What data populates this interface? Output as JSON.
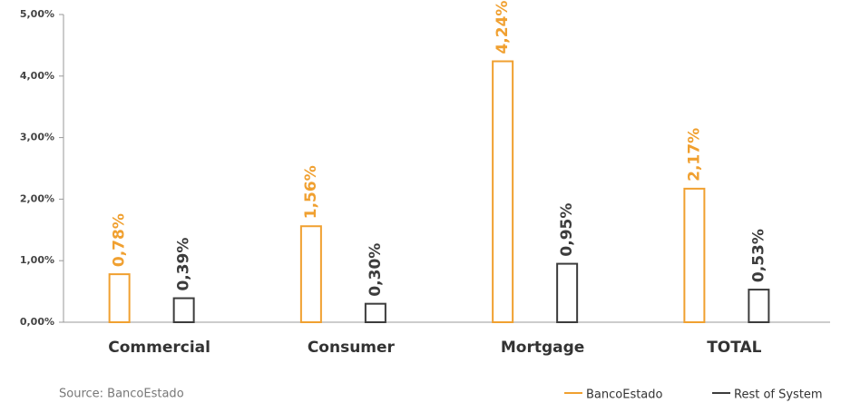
{
  "chart_data": {
    "type": "bar",
    "categories": [
      "Commercial",
      "Consumer",
      "Mortgage",
      "TOTAL"
    ],
    "series": [
      {
        "name": "BancoEstado",
        "color": "#f0a030",
        "values": [
          0.78,
          1.56,
          4.24,
          2.17
        ],
        "value_labels": [
          "0,78%",
          "1,56%",
          "4,24%",
          "2,17%"
        ]
      },
      {
        "name": "Rest of System",
        "color": "#3c3c3c",
        "values": [
          0.39,
          0.3,
          0.95,
          0.53
        ],
        "value_labels": [
          "0,39%",
          "0,30%",
          "0,95%",
          "0,53%"
        ]
      }
    ],
    "ylim": [
      0,
      5
    ],
    "yticks": [
      {
        "value": 0,
        "label": "0,00%"
      },
      {
        "value": 1,
        "label": "1,00%"
      },
      {
        "value": 2,
        "label": "2,00%"
      },
      {
        "value": 3,
        "label": "3,00%"
      },
      {
        "value": 4,
        "label": "4,00%"
      },
      {
        "value": 5,
        "label": "5,00%"
      }
    ],
    "legend": "bottom-right",
    "source": "Source: BancoEstado"
  }
}
